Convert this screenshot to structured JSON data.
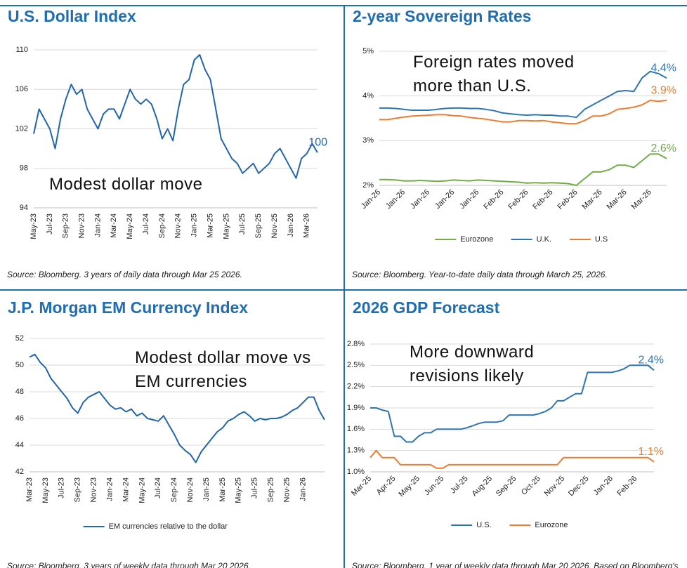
{
  "chart_data": [
    {
      "type": "line",
      "title": "U.S. Dollar Index",
      "x": [
        "May-23",
        null,
        null,
        "Jul-23",
        null,
        null,
        "Sep-23",
        null,
        null,
        "Nov-23",
        null,
        null,
        "Jan-24",
        null,
        null,
        "Mar-24",
        null,
        null,
        "May-24",
        null,
        null,
        "Jul-24",
        null,
        null,
        "Sep-24",
        null,
        null,
        "Nov-24",
        null,
        null,
        "Jan-25",
        null,
        null,
        "Mar-25",
        null,
        null,
        "May-25",
        null,
        null,
        "Jul-25",
        null,
        null,
        "Sep-25",
        null,
        null,
        "Nov-25",
        null,
        null,
        "Jan-26",
        null,
        null,
        "Mar-26",
        null,
        null
      ],
      "series": [
        {
          "color": "#2166ac",
          "values": [
            101.5,
            104,
            103,
            102,
            100,
            103,
            105,
            106.5,
            105.5,
            106,
            104,
            103,
            102,
            103.5,
            104,
            104,
            103,
            104.5,
            106,
            105,
            104.5,
            105,
            104.5,
            103,
            101,
            102,
            100.8,
            104,
            106.5,
            107,
            109,
            109.5,
            108,
            107,
            104,
            101,
            100,
            99,
            98.5,
            97.5,
            98,
            98.5,
            97.5,
            98,
            98.5,
            99.5,
            100,
            99,
            98,
            97,
            99,
            99.5,
            100.5,
            99.6
          ],
          "value_labels": [
            null,
            null,
            null,
            null,
            null,
            null,
            null,
            null,
            null,
            null,
            null,
            null,
            null,
            null,
            null,
            null,
            null,
            null,
            null,
            null,
            null,
            null,
            null,
            null,
            null,
            null,
            null,
            null,
            null,
            null,
            null,
            null,
            null,
            null,
            null,
            null,
            null,
            null,
            null,
            null,
            null,
            null,
            null,
            null,
            null,
            null,
            null,
            null,
            null,
            null,
            null,
            null,
            null,
            "100"
          ]
        }
      ],
      "ylim": [
        94,
        110
      ],
      "yticks": [
        94,
        98,
        102,
        106,
        110
      ],
      "grid": true,
      "annotation": "Modest dollar move",
      "source": "Source: Bloomberg. 3 years of daily data through Mar 25 2026."
    },
    {
      "type": "line",
      "title": "2-year Sovereign Rates",
      "x": [
        "Jan-26",
        null,
        null,
        "Jan-26",
        null,
        null,
        "Jan-26",
        null,
        null,
        "Jan-26",
        null,
        null,
        "Jan-26",
        null,
        null,
        "Feb-26",
        null,
        null,
        "Feb-26",
        null,
        null,
        "Feb-26",
        null,
        null,
        "Feb-26",
        null,
        null,
        "Mar-26",
        null,
        null,
        "Mar-26",
        null,
        null,
        "Mar-26",
        null,
        null
      ],
      "series": [
        {
          "name": "Eurozone",
          "color": "#70ad47",
          "values": [
            2.13,
            2.13,
            2.12,
            2.1,
            2.1,
            2.11,
            2.1,
            2.09,
            2.1,
            2.12,
            2.11,
            2.1,
            2.12,
            2.11,
            2.1,
            2.09,
            2.08,
            2.07,
            2.05,
            2.06,
            2.05,
            2.06,
            2.05,
            2.04,
            2.0,
            2.15,
            2.3,
            2.3,
            2.35,
            2.45,
            2.45,
            2.4,
            2.55,
            2.7,
            2.7,
            2.6
          ],
          "value_labels": [
            null,
            null,
            null,
            null,
            null,
            null,
            null,
            null,
            null,
            null,
            null,
            null,
            null,
            null,
            null,
            null,
            null,
            null,
            null,
            null,
            null,
            null,
            null,
            null,
            null,
            null,
            null,
            null,
            null,
            null,
            null,
            null,
            null,
            null,
            null,
            "2.6%"
          ]
        },
        {
          "name": "U.K.",
          "color": "#2e75b6",
          "values": [
            3.73,
            3.73,
            3.72,
            3.7,
            3.68,
            3.68,
            3.68,
            3.7,
            3.72,
            3.73,
            3.73,
            3.72,
            3.72,
            3.7,
            3.67,
            3.62,
            3.6,
            3.58,
            3.57,
            3.58,
            3.57,
            3.57,
            3.55,
            3.55,
            3.52,
            3.7,
            3.8,
            3.9,
            4.0,
            4.1,
            4.12,
            4.1,
            4.4,
            4.55,
            4.5,
            4.4
          ],
          "value_labels": [
            null,
            null,
            null,
            null,
            null,
            null,
            null,
            null,
            null,
            null,
            null,
            null,
            null,
            null,
            null,
            null,
            null,
            null,
            null,
            null,
            null,
            null,
            null,
            null,
            null,
            null,
            null,
            null,
            null,
            null,
            null,
            null,
            null,
            null,
            null,
            "4.4%"
          ]
        },
        {
          "name": "U.S",
          "color": "#ed7d31",
          "values": [
            3.47,
            3.47,
            3.5,
            3.53,
            3.55,
            3.56,
            3.57,
            3.58,
            3.58,
            3.56,
            3.55,
            3.52,
            3.5,
            3.48,
            3.45,
            3.42,
            3.42,
            3.45,
            3.45,
            3.44,
            3.45,
            3.42,
            3.4,
            3.38,
            3.38,
            3.45,
            3.55,
            3.55,
            3.6,
            3.7,
            3.72,
            3.75,
            3.8,
            3.9,
            3.88,
            3.9
          ],
          "value_labels": [
            null,
            null,
            null,
            null,
            null,
            null,
            null,
            null,
            null,
            null,
            null,
            null,
            null,
            null,
            null,
            null,
            null,
            null,
            null,
            null,
            null,
            null,
            null,
            null,
            null,
            null,
            null,
            null,
            null,
            null,
            null,
            null,
            null,
            null,
            null,
            "3.9%"
          ]
        }
      ],
      "ylim": [
        2,
        5
      ],
      "yticks": [
        {
          "value": 2,
          "label": "2%"
        },
        {
          "value": 3,
          "label": "3%"
        },
        {
          "value": 4,
          "label": "4%"
        },
        {
          "value": 5,
          "label": "5%"
        }
      ],
      "grid": true,
      "legend": "bottom",
      "annotation": "Foreign rates moved\nmore than U.S.",
      "source": "Source: Bloomberg. Year-to-date daily data through March 25, 2026."
    },
    {
      "type": "line",
      "title": "J.P. Morgan EM Currency Index",
      "x": [
        "Mar-23",
        null,
        null,
        "May-23",
        null,
        null,
        "Jul-23",
        null,
        null,
        "Sep-23",
        null,
        null,
        "Nov-23",
        null,
        null,
        "Jan-24",
        null,
        null,
        "Mar-24",
        null,
        null,
        "May-24",
        null,
        null,
        "Jul-24",
        null,
        null,
        "Sep-24",
        null,
        null,
        "Nov-24",
        null,
        null,
        "Jan-25",
        null,
        null,
        "Mar-25",
        null,
        null,
        "May-25",
        null,
        null,
        "Jul-25",
        null,
        null,
        "Sep-25",
        null,
        null,
        "Nov-25",
        null,
        null,
        "Jan-26",
        null,
        null,
        null,
        null
      ],
      "series": [
        {
          "name": "EM currencies relative to the dollar",
          "color": "#2166ac",
          "values": [
            50.6,
            50.8,
            50.2,
            49.8,
            49.0,
            48.5,
            48.0,
            47.5,
            46.8,
            46.4,
            47.2,
            47.6,
            47.8,
            48.0,
            47.5,
            47.0,
            46.7,
            46.8,
            46.5,
            46.7,
            46.2,
            46.4,
            46.0,
            45.9,
            45.8,
            46.2,
            45.5,
            44.8,
            44.0,
            43.6,
            43.3,
            42.7,
            43.5,
            44.0,
            44.5,
            45.0,
            45.3,
            45.8,
            46.0,
            46.3,
            46.5,
            46.2,
            45.8,
            46.0,
            45.9,
            46.0,
            46.0,
            46.1,
            46.3,
            46.6,
            46.8,
            47.2,
            47.6,
            47.6,
            46.6,
            45.9
          ]
        }
      ],
      "ylim": [
        42,
        52
      ],
      "yticks": [
        42,
        44,
        46,
        48,
        50,
        52
      ],
      "grid": true,
      "legend": "bottom",
      "annotation": "Modest dollar move vs\nEM currencies",
      "source": "Source: Bloomberg. 3 years of weekly data through Mar 20 2026."
    },
    {
      "type": "line",
      "title": "2026 GDP Forecast",
      "x": [
        "Mar-25",
        null,
        null,
        null,
        "Apr-25",
        null,
        null,
        null,
        "May-25",
        null,
        null,
        null,
        "Jun-25",
        null,
        null,
        null,
        "Jul-25",
        null,
        null,
        null,
        "Aug-25",
        null,
        null,
        null,
        "Sep-25",
        null,
        null,
        null,
        "Oct-25",
        null,
        null,
        null,
        "Nov-25",
        null,
        null,
        null,
        "Dec-25",
        null,
        null,
        null,
        "Jan-26",
        null,
        null,
        null,
        "Feb-26",
        null,
        null,
        null
      ],
      "series": [
        {
          "name": "U.S.",
          "color": "#2e75b6",
          "values": [
            1.9,
            1.9,
            1.87,
            1.85,
            1.5,
            1.5,
            1.42,
            1.42,
            1.5,
            1.55,
            1.55,
            1.6,
            1.6,
            1.6,
            1.6,
            1.6,
            1.62,
            1.65,
            1.68,
            1.7,
            1.7,
            1.7,
            1.72,
            1.8,
            1.8,
            1.8,
            1.8,
            1.8,
            1.82,
            1.85,
            1.9,
            2.0,
            2.0,
            2.05,
            2.1,
            2.1,
            2.4,
            2.4,
            2.4,
            2.4,
            2.4,
            2.42,
            2.45,
            2.5,
            2.5,
            2.5,
            2.5,
            2.43
          ],
          "value_labels": [
            null,
            null,
            null,
            null,
            null,
            null,
            null,
            null,
            null,
            null,
            null,
            null,
            null,
            null,
            null,
            null,
            null,
            null,
            null,
            null,
            null,
            null,
            null,
            null,
            null,
            null,
            null,
            null,
            null,
            null,
            null,
            null,
            null,
            null,
            null,
            null,
            null,
            null,
            null,
            null,
            null,
            null,
            null,
            null,
            null,
            null,
            null,
            "2.4%"
          ]
        },
        {
          "name": "Eurozone",
          "color": "#ed7d31",
          "values": [
            1.2,
            1.3,
            1.2,
            1.2,
            1.2,
            1.1,
            1.1,
            1.1,
            1.1,
            1.1,
            1.1,
            1.05,
            1.05,
            1.1,
            1.1,
            1.1,
            1.1,
            1.1,
            1.1,
            1.1,
            1.1,
            1.1,
            1.1,
            1.1,
            1.1,
            1.1,
            1.1,
            1.1,
            1.1,
            1.1,
            1.1,
            1.1,
            1.2,
            1.2,
            1.2,
            1.2,
            1.2,
            1.2,
            1.2,
            1.2,
            1.2,
            1.2,
            1.2,
            1.2,
            1.2,
            1.2,
            1.2,
            1.14
          ],
          "value_labels": [
            null,
            null,
            null,
            null,
            null,
            null,
            null,
            null,
            null,
            null,
            null,
            null,
            null,
            null,
            null,
            null,
            null,
            null,
            null,
            null,
            null,
            null,
            null,
            null,
            null,
            null,
            null,
            null,
            null,
            null,
            null,
            null,
            null,
            null,
            null,
            null,
            null,
            null,
            null,
            null,
            null,
            null,
            null,
            null,
            null,
            null,
            null,
            "1.1%"
          ]
        }
      ],
      "ylim": [
        1.0,
        2.8
      ],
      "yticks": [
        {
          "value": 1.0,
          "label": "1.0%"
        },
        {
          "value": 1.3,
          "label": "1.3%"
        },
        {
          "value": 1.6,
          "label": "1.6%"
        },
        {
          "value": 1.9,
          "label": "1.9%"
        },
        {
          "value": 2.2,
          "label": "2.2%"
        },
        {
          "value": 2.5,
          "label": "2.5%"
        },
        {
          "value": 2.8,
          "label": "2.8%"
        }
      ],
      "grid": true,
      "legend": "bottom",
      "annotation": "More downward\nrevisions likely",
      "source": "Source: Bloomberg. 1 year of weekly data through Mar 20 2026. Based on Bloomberg's survey of economists."
    }
  ]
}
